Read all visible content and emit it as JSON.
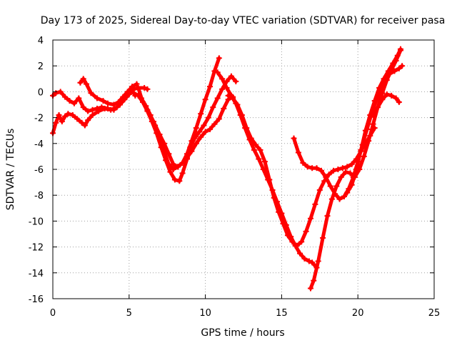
{
  "chart_data": {
    "type": "scatter",
    "title": "Day 173 of 2025, Sidereal Day-to-day VTEC variation (SDTVAR) for receiver pasa",
    "xlabel": "GPS time / hours",
    "ylabel": "SDTVAR / TECUs",
    "xlim": [
      0,
      25
    ],
    "ylim": [
      -16,
      4
    ],
    "xticks": [
      0,
      5,
      10,
      15,
      20,
      25
    ],
    "yticks": [
      -16,
      -14,
      -12,
      -10,
      -8,
      -6,
      -4,
      -2,
      0,
      2,
      4
    ],
    "grid": true,
    "marker": "plus",
    "series_color": "#ff0000",
    "series": [
      {
        "x": [
          0.0,
          0.2,
          0.4,
          0.6,
          0.8,
          1.0,
          1.3,
          1.6,
          1.9,
          2.1,
          2.3,
          2.6,
          3.0,
          3.4,
          3.8,
          4.2,
          4.5,
          4.8,
          5.0,
          5.2,
          5.4
        ],
        "y": [
          -3.2,
          -2.4,
          -1.8,
          -2.3,
          -1.9,
          -1.7,
          -1.8,
          -2.1,
          -2.4,
          -2.6,
          -2.2,
          -1.8,
          -1.5,
          -1.3,
          -1.4,
          -1.2,
          -0.8,
          -0.4,
          0.0,
          0.1,
          -0.3
        ]
      },
      {
        "x": [
          0.0,
          0.2,
          0.5,
          0.8,
          1.1,
          1.4,
          1.7,
          2.0,
          2.3,
          2.6,
          2.9,
          3.2,
          3.6,
          4.0,
          4.4,
          4.7,
          5.0,
          5.3,
          5.6,
          6.0,
          6.2
        ],
        "y": [
          -0.3,
          -0.1,
          0.0,
          -0.4,
          -0.7,
          -0.9,
          -0.5,
          -1.2,
          -1.5,
          -1.4,
          -1.3,
          -1.2,
          -1.3,
          -1.4,
          -1.0,
          -0.6,
          -0.2,
          0.2,
          0.3,
          0.3,
          0.2
        ]
      },
      {
        "x": [
          1.8,
          2.0,
          2.2,
          2.5,
          2.9,
          3.3,
          3.6,
          4.0,
          4.3,
          4.6,
          4.9,
          5.2,
          5.5
        ],
        "y": [
          0.7,
          1.0,
          0.6,
          -0.1,
          -0.5,
          -0.7,
          -0.9,
          -1.0,
          -0.8,
          -0.4,
          0.0,
          0.4,
          0.6
        ]
      },
      {
        "x": [
          5.3,
          5.6,
          5.9,
          6.2,
          6.5,
          6.8,
          7.1,
          7.4,
          7.7,
          8.0,
          8.3,
          8.5,
          8.8,
          9.0,
          9.3,
          9.6,
          9.9,
          10.2,
          10.5,
          10.8,
          11.1,
          11.4,
          11.7,
          12.0
        ],
        "y": [
          -0.1,
          -0.3,
          -0.8,
          -1.5,
          -2.3,
          -3.2,
          -4.3,
          -5.3,
          -6.2,
          -6.8,
          -6.9,
          -6.3,
          -5.2,
          -4.3,
          -3.6,
          -3.1,
          -2.6,
          -2.0,
          -1.2,
          -0.5,
          0.2,
          0.8,
          1.2,
          0.8
        ]
      },
      {
        "x": [
          5.6,
          5.9,
          6.2,
          6.6,
          7.0,
          7.3,
          7.6,
          7.9,
          8.2,
          8.5,
          8.8,
          9.1,
          9.4,
          9.7,
          10.0,
          10.3,
          10.6,
          10.9,
          11.2,
          11.5,
          11.8
        ],
        "y": [
          0.3,
          -0.8,
          -1.4,
          -2.3,
          -3.3,
          -4.0,
          -4.8,
          -5.6,
          -5.8,
          -5.5,
          -5.1,
          -4.6,
          -4.0,
          -3.5,
          -3.1,
          -2.9,
          -2.5,
          -2.1,
          -1.3,
          -0.6,
          -0.4
        ]
      },
      {
        "x": [
          5.8,
          6.1,
          6.4,
          6.7,
          7.0,
          7.3,
          7.6,
          7.9,
          8.2,
          8.5,
          8.8,
          9.1,
          9.4,
          9.7,
          10.0,
          10.3,
          10.6,
          10.9
        ],
        "y": [
          -0.5,
          -1.1,
          -1.8,
          -2.6,
          -3.5,
          -4.6,
          -5.6,
          -6.0,
          -5.8,
          -5.5,
          -4.8,
          -3.8,
          -2.8,
          -1.7,
          -0.6,
          0.4,
          1.6,
          2.6
        ]
      },
      {
        "x": [
          10.8,
          11.1,
          11.4,
          11.7,
          12.0,
          12.3,
          12.6,
          12.9,
          13.2,
          13.5,
          13.8,
          14.1,
          14.4,
          14.7,
          15.0,
          15.3,
          15.6,
          15.9,
          16.2,
          16.5,
          16.8,
          17.0,
          17.3
        ],
        "y": [
          1.5,
          1.0,
          0.3,
          -0.3,
          -0.9,
          -1.8,
          -2.8,
          -3.7,
          -4.5,
          -5.2,
          -6.0,
          -6.8,
          -7.6,
          -8.5,
          -9.4,
          -10.3,
          -11.2,
          -11.9,
          -12.5,
          -12.9,
          -13.1,
          -13.2,
          -13.6
        ]
      },
      {
        "x": [
          11.5,
          11.8,
          12.1,
          12.4,
          12.7,
          13.0,
          13.3,
          13.6,
          13.9,
          14.2,
          14.5,
          14.8,
          15.1,
          15.4,
          15.7,
          16.0,
          16.3,
          16.6,
          16.9,
          17.2,
          17.5,
          17.8,
          18.1,
          18.4,
          18.7,
          19.0,
          19.3,
          19.6,
          19.9,
          20.2,
          20.5,
          20.8,
          21.1
        ],
        "y": [
          -0.3,
          -0.5,
          -1.0,
          -1.8,
          -2.8,
          -3.6,
          -4.1,
          -4.5,
          -5.4,
          -6.8,
          -8.2,
          -9.3,
          -10.2,
          -11.1,
          -11.6,
          -11.9,
          -11.6,
          -10.8,
          -9.8,
          -8.7,
          -7.6,
          -6.9,
          -6.4,
          -6.1,
          -6.0,
          -5.9,
          -5.8,
          -5.6,
          -5.2,
          -4.6,
          -4.0,
          -3.4,
          -2.8
        ]
      },
      {
        "x": [
          15.8,
          16.1,
          16.4,
          16.7,
          17.0,
          17.3,
          17.6,
          17.9,
          18.2,
          18.5,
          18.8,
          19.1,
          19.4,
          19.7,
          20.0,
          20.3,
          20.6,
          20.9,
          21.2,
          21.5,
          21.8,
          22.1,
          22.4,
          22.7,
          22.9
        ],
        "y": [
          -3.6,
          -4.7,
          -5.5,
          -5.8,
          -5.9,
          -5.9,
          -6.1,
          -6.6,
          -7.3,
          -7.9,
          -8.3,
          -8.1,
          -7.5,
          -6.6,
          -5.4,
          -4.1,
          -2.9,
          -1.7,
          -0.7,
          0.3,
          0.9,
          1.4,
          1.6,
          1.8,
          2.0
        ]
      },
      {
        "x": [
          16.9,
          17.1,
          17.4,
          17.7,
          18.0,
          18.3,
          18.6,
          18.9,
          19.2,
          19.5,
          19.8,
          20.1,
          20.4,
          20.7,
          21.0,
          21.3,
          21.6,
          21.9,
          22.2,
          22.5,
          22.8
        ],
        "y": [
          -15.2,
          -14.6,
          -13.1,
          -11.3,
          -9.6,
          -8.3,
          -7.3,
          -6.6,
          -6.2,
          -6.3,
          -6.6,
          -6.0,
          -5.0,
          -3.8,
          -2.5,
          -1.2,
          -0.1,
          0.9,
          1.7,
          2.4,
          3.2
        ]
      },
      {
        "x": [
          19.3,
          19.6,
          19.9,
          20.2,
          20.5,
          20.8,
          21.1,
          21.4,
          21.7,
          22.0,
          22.3,
          22.6,
          22.8
        ],
        "y": [
          -7.8,
          -7.2,
          -6.0,
          -4.5,
          -3.0,
          -1.8,
          -0.7,
          0.3,
          1.0,
          1.6,
          2.2,
          2.8,
          3.3
        ]
      },
      {
        "x": [
          21.0,
          21.3,
          21.6,
          21.9,
          22.2,
          22.5,
          22.7
        ],
        "y": [
          -1.8,
          -1.2,
          -0.6,
          -0.2,
          -0.3,
          -0.5,
          -0.8
        ]
      }
    ]
  }
}
